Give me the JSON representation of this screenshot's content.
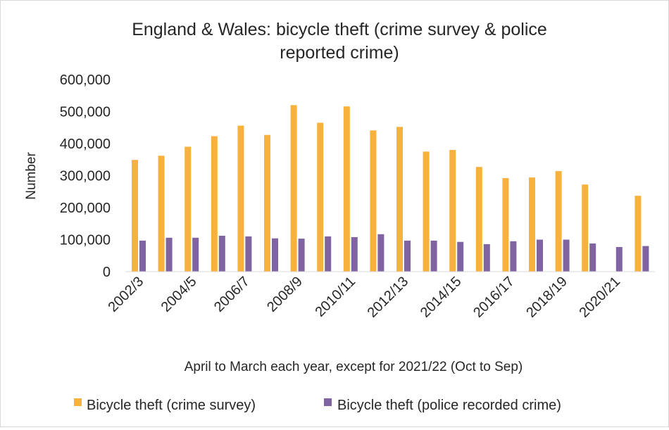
{
  "chart_data": {
    "type": "bar",
    "title_lines": [
      "England & Wales: bicycle theft (crime survey & police",
      "reported crime)"
    ],
    "xlabel": "April to March each year, except for 2021/22 (Oct to Sep)",
    "ylabel": "Number",
    "ylim": [
      0,
      600000
    ],
    "y_ticks": [
      0,
      100000,
      200000,
      300000,
      400000,
      500000,
      600000
    ],
    "y_tick_labels": [
      "0",
      "100,000",
      "200,000",
      "300,000",
      "400,000",
      "500,000",
      "600,000"
    ],
    "x_tick_labels": [
      "2002/3",
      "2004/5",
      "2006/7",
      "2008/9",
      "2010/11",
      "2012/13",
      "2014/15",
      "2016/17",
      "2018/19",
      "2020/21"
    ],
    "x_tick_label_every": 2,
    "num_categories": 20,
    "series": [
      {
        "name": "Bicycle theft (crime survey)",
        "color": "#F8B13C",
        "values": [
          349000,
          362000,
          390000,
          423000,
          456000,
          427000,
          520000,
          465000,
          516000,
          441000,
          452000,
          375000,
          380000,
          327000,
          292000,
          294000,
          314000,
          272000,
          null,
          237000
        ]
      },
      {
        "name": "Bicycle theft (police recorded crime)",
        "color": "#8064A2",
        "values": [
          97000,
          106000,
          106000,
          112000,
          110000,
          104000,
          103000,
          110000,
          108000,
          117000,
          97000,
          97000,
          93000,
          86000,
          95000,
          100000,
          100000,
          88000,
          77000,
          80000
        ]
      }
    ],
    "legend_position": "bottom"
  }
}
